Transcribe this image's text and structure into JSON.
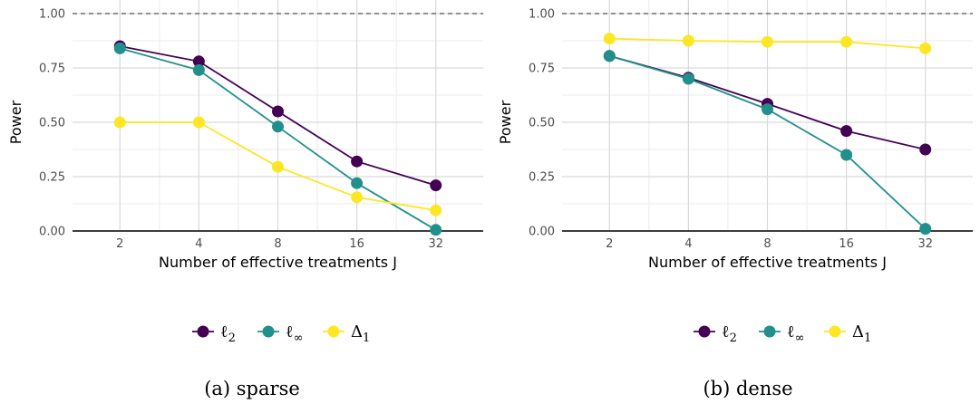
{
  "chart_data": [
    {
      "type": "line",
      "caption": "(a) sparse",
      "xlabel": "Number of effective treatments J",
      "ylabel": "Power",
      "x_scale": "log2",
      "categories": [
        "2",
        "4",
        "8",
        "16",
        "32"
      ],
      "x": [
        2,
        4,
        8,
        16,
        32
      ],
      "ylim": [
        0,
        1
      ],
      "yticks": [
        "0.00",
        "0.25",
        "0.50",
        "0.75",
        "1.00"
      ],
      "yticks_values": [
        0,
        0.25,
        0.5,
        0.75,
        1.0
      ],
      "reference_line": 1.0,
      "grid": true,
      "legend_placement": "bottom",
      "series": [
        {
          "name": "ℓ2",
          "color": "#440154",
          "values": [
            0.85,
            0.78,
            0.55,
            0.32,
            0.21
          ]
        },
        {
          "name": "ℓ∞",
          "color": "#21908C",
          "values": [
            0.84,
            0.74,
            0.48,
            0.22,
            0.005
          ]
        },
        {
          "name": "Δ1",
          "color": "#FDE725",
          "values": [
            0.5,
            0.5,
            0.295,
            0.155,
            0.095
          ]
        }
      ]
    },
    {
      "type": "line",
      "caption": "(b) dense",
      "xlabel": "Number of effective treatments J",
      "ylabel": "Power",
      "x_scale": "log2",
      "categories": [
        "2",
        "4",
        "8",
        "16",
        "32"
      ],
      "x": [
        2,
        4,
        8,
        16,
        32
      ],
      "ylim": [
        0,
        1
      ],
      "yticks": [
        "0.00",
        "0.25",
        "0.50",
        "0.75",
        "1.00"
      ],
      "yticks_values": [
        0,
        0.25,
        0.5,
        0.75,
        1.0
      ],
      "reference_line": 1.0,
      "grid": true,
      "legend_placement": "bottom",
      "series": [
        {
          "name": "ℓ2",
          "color": "#440154",
          "values": [
            0.805,
            0.705,
            0.585,
            0.46,
            0.375
          ]
        },
        {
          "name": "ℓ∞",
          "color": "#21908C",
          "values": [
            0.805,
            0.7,
            0.56,
            0.35,
            0.01
          ]
        },
        {
          "name": "Δ1",
          "color": "#FDE725",
          "values": [
            0.885,
            0.875,
            0.87,
            0.87,
            0.84
          ]
        }
      ]
    }
  ],
  "legend": {
    "entries": [
      {
        "label_base": "ℓ",
        "label_sub": "2",
        "color": "#440154"
      },
      {
        "label_base": "ℓ",
        "label_sub": "∞",
        "color": "#21908C"
      },
      {
        "label_base": "Δ",
        "label_sub": "1",
        "color": "#FDE725"
      }
    ]
  }
}
